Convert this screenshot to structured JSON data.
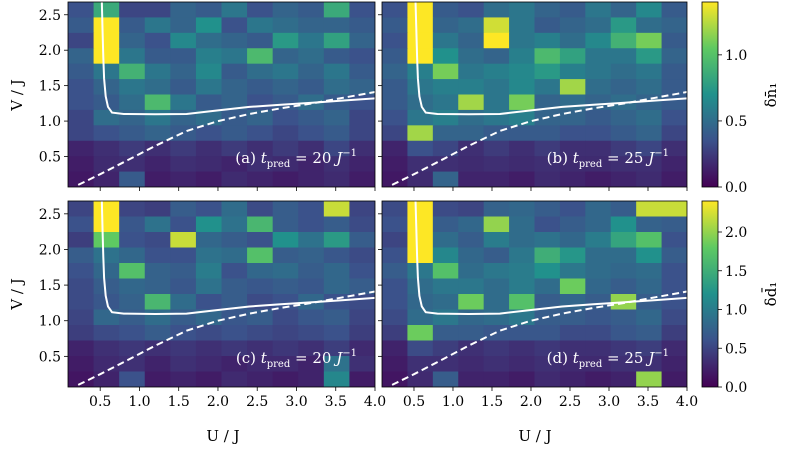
{
  "chart_data": {
    "type": "heatmap",
    "grid": {
      "rows": 12,
      "cols": 12
    },
    "x_range": [
      0.09,
      4.0
    ],
    "y_range": [
      0.07,
      2.68
    ],
    "xticks": [
      0.5,
      1.0,
      1.5,
      2.0,
      2.5,
      3.0,
      3.5,
      4.0
    ],
    "xtick_labels": [
      "0.5",
      "1.0",
      "1.5",
      "2.0",
      "2.5",
      "3.0",
      "3.5",
      "4.0"
    ],
    "yticks": [
      0.5,
      1.0,
      1.5,
      2.0,
      2.5
    ],
    "ytick_labels": [
      "0.5",
      "1.0",
      "1.5",
      "2.0",
      "2.5"
    ],
    "xlabel": "U / J",
    "ylabel": "V / J",
    "colormap": [
      "#440154",
      "#3b528b",
      "#21918c",
      "#5ec962",
      "#fde725"
    ],
    "solid_curve": [
      [
        0.52,
        2.7
      ],
      [
        0.53,
        2.3
      ],
      [
        0.54,
        1.9
      ],
      [
        0.55,
        1.6
      ],
      [
        0.57,
        1.35
      ],
      [
        0.6,
        1.2
      ],
      [
        0.65,
        1.12
      ],
      [
        0.8,
        1.1
      ],
      [
        1.2,
        1.095
      ],
      [
        1.6,
        1.1
      ],
      [
        2.0,
        1.15
      ],
      [
        2.4,
        1.2
      ],
      [
        2.8,
        1.23
      ],
      [
        3.2,
        1.26
      ],
      [
        3.6,
        1.29
      ],
      [
        4.0,
        1.32
      ]
    ],
    "dashed_curve": [
      [
        0.22,
        0.1
      ],
      [
        0.5,
        0.25
      ],
      [
        0.8,
        0.42
      ],
      [
        1.2,
        0.65
      ],
      [
        1.6,
        0.86
      ],
      [
        2.0,
        1.0
      ],
      [
        2.4,
        1.1
      ],
      [
        2.8,
        1.18
      ],
      [
        3.2,
        1.25
      ],
      [
        3.6,
        1.33
      ],
      [
        4.0,
        1.41
      ]
    ],
    "colorbars": [
      {
        "label": "δn̄₁",
        "range": [
          0,
          1.4
        ],
        "ticks": [
          0.0,
          0.5,
          1.0
        ],
        "tick_labels": [
          "0.0",
          "0.5",
          "1.0"
        ]
      },
      {
        "label": "δd̄₁",
        "range": [
          0,
          2.4
        ],
        "ticks": [
          0.0,
          0.5,
          1.0,
          1.5,
          2.0
        ],
        "tick_labels": [
          "0.0",
          "0.5",
          "1.0",
          "1.5",
          "2.0"
        ]
      }
    ],
    "panels": [
      {
        "id": "a",
        "label_prefix": "(a) ",
        "t_pred": "20",
        "colorbar": 0,
        "values": [
          [
            0.35,
            0.85,
            0.3,
            0.3,
            0.45,
            0.4,
            0.55,
            0.35,
            0.45,
            0.4,
            0.85,
            0.35
          ],
          [
            0.4,
            1.4,
            0.4,
            0.55,
            0.45,
            0.7,
            0.35,
            0.55,
            0.5,
            0.45,
            0.45,
            0.4
          ],
          [
            0.3,
            1.4,
            0.45,
            0.35,
            0.65,
            0.5,
            0.45,
            0.4,
            0.75,
            0.55,
            0.8,
            0.45
          ],
          [
            0.45,
            1.4,
            0.55,
            0.4,
            0.4,
            0.6,
            0.55,
            0.95,
            0.45,
            0.5,
            0.4,
            0.35
          ],
          [
            0.4,
            0.55,
            0.9,
            0.55,
            0.45,
            0.65,
            0.4,
            0.5,
            0.55,
            0.45,
            0.55,
            0.4
          ],
          [
            0.35,
            0.45,
            0.55,
            0.5,
            0.4,
            0.55,
            0.45,
            0.4,
            0.45,
            0.4,
            0.5,
            0.45
          ],
          [
            0.35,
            0.4,
            0.5,
            0.95,
            0.55,
            0.4,
            0.45,
            0.35,
            0.4,
            0.5,
            0.4,
            0.35
          ],
          [
            0.3,
            0.5,
            0.45,
            0.55,
            0.45,
            0.5,
            0.4,
            0.45,
            0.35,
            0.4,
            0.45,
            0.3
          ],
          [
            0.3,
            0.35,
            0.4,
            0.45,
            0.4,
            0.35,
            0.4,
            0.35,
            0.3,
            0.35,
            0.4,
            0.3
          ],
          [
            0.15,
            0.2,
            0.25,
            0.2,
            0.25,
            0.2,
            0.25,
            0.2,
            0.25,
            0.2,
            0.3,
            0.2
          ],
          [
            0.12,
            0.18,
            0.2,
            0.15,
            0.2,
            0.18,
            0.15,
            0.2,
            0.18,
            0.15,
            0.2,
            0.15
          ],
          [
            0.1,
            0.15,
            0.4,
            0.12,
            0.15,
            0.12,
            0.18,
            0.15,
            0.12,
            0.15,
            0.18,
            0.12
          ]
        ]
      },
      {
        "id": "b",
        "label_prefix": "(b) ",
        "t_pred": "25",
        "colorbar": 0,
        "values": [
          [
            0.35,
            1.4,
            0.4,
            0.35,
            0.5,
            0.55,
            0.45,
            0.4,
            0.55,
            0.45,
            0.65,
            0.4
          ],
          [
            0.4,
            1.4,
            0.45,
            0.5,
            1.3,
            0.55,
            0.4,
            0.45,
            0.5,
            0.75,
            0.5,
            0.45
          ],
          [
            0.35,
            1.4,
            0.55,
            0.45,
            1.4,
            0.55,
            0.6,
            0.5,
            0.65,
            0.9,
            1.1,
            0.4
          ],
          [
            0.4,
            1.4,
            0.7,
            0.5,
            0.45,
            0.6,
            0.95,
            0.8,
            0.55,
            0.55,
            0.75,
            0.45
          ],
          [
            0.45,
            0.6,
            1.1,
            0.55,
            0.6,
            0.65,
            0.75,
            0.6,
            0.55,
            0.5,
            0.55,
            0.4
          ],
          [
            0.4,
            0.55,
            0.6,
            0.6,
            0.55,
            0.65,
            0.55,
            1.2,
            0.5,
            0.45,
            0.5,
            0.4
          ],
          [
            0.4,
            0.5,
            0.55,
            1.2,
            0.55,
            1.1,
            0.45,
            0.5,
            0.45,
            0.5,
            0.45,
            0.4
          ],
          [
            0.35,
            0.55,
            0.6,
            0.5,
            0.55,
            0.6,
            0.45,
            0.45,
            0.4,
            0.45,
            0.5,
            0.35
          ],
          [
            0.3,
            1.2,
            0.45,
            0.45,
            0.4,
            0.4,
            0.4,
            0.35,
            0.35,
            0.4,
            0.45,
            0.3
          ],
          [
            0.15,
            0.35,
            0.3,
            0.2,
            0.25,
            0.2,
            0.25,
            0.2,
            0.2,
            0.25,
            0.3,
            0.2
          ],
          [
            0.12,
            0.2,
            0.2,
            0.18,
            0.2,
            0.18,
            0.2,
            0.18,
            0.18,
            0.2,
            0.2,
            0.15
          ],
          [
            0.1,
            0.18,
            0.45,
            0.15,
            0.15,
            0.12,
            0.18,
            0.15,
            0.12,
            0.15,
            0.18,
            0.12
          ]
        ]
      },
      {
        "id": "c",
        "label_prefix": "(c) ",
        "t_pred": "20",
        "colorbar": 1,
        "values": [
          [
            0.5,
            2.4,
            0.5,
            0.45,
            0.7,
            0.6,
            0.85,
            0.55,
            0.7,
            0.6,
            2.2,
            0.5
          ],
          [
            0.6,
            2.4,
            0.65,
            0.9,
            0.6,
            1.2,
            0.9,
            1.6,
            0.7,
            0.6,
            0.7,
            0.55
          ],
          [
            0.45,
            1.8,
            0.6,
            0.55,
            2.2,
            0.8,
            0.7,
            0.6,
            1.2,
            0.9,
            1.3,
            0.7
          ],
          [
            0.7,
            0.9,
            0.8,
            0.6,
            0.6,
            0.9,
            0.85,
            1.7,
            0.7,
            0.75,
            0.65,
            0.55
          ],
          [
            0.6,
            0.8,
            1.7,
            0.75,
            0.7,
            1.0,
            0.6,
            0.8,
            0.85,
            0.7,
            0.8,
            0.6
          ],
          [
            0.55,
            0.7,
            0.8,
            0.75,
            0.65,
            0.9,
            0.7,
            0.65,
            0.7,
            0.65,
            0.8,
            0.7
          ],
          [
            0.55,
            0.65,
            0.75,
            1.6,
            0.85,
            0.6,
            0.7,
            0.55,
            0.6,
            0.8,
            0.6,
            0.55
          ],
          [
            0.5,
            0.8,
            0.7,
            0.85,
            0.7,
            0.8,
            0.65,
            0.7,
            0.55,
            0.65,
            0.7,
            0.5
          ],
          [
            0.45,
            0.55,
            0.6,
            0.7,
            0.6,
            0.55,
            0.6,
            0.55,
            0.5,
            0.55,
            0.6,
            0.45
          ],
          [
            0.25,
            0.35,
            0.4,
            0.35,
            0.4,
            0.35,
            0.4,
            0.35,
            0.4,
            0.35,
            0.45,
            0.3
          ],
          [
            0.2,
            0.3,
            0.35,
            0.25,
            0.35,
            0.3,
            0.25,
            0.3,
            0.3,
            0.25,
            0.9,
            0.35
          ],
          [
            0.15,
            0.25,
            0.6,
            0.2,
            0.25,
            0.2,
            0.3,
            0.25,
            0.2,
            0.25,
            1.1,
            0.2
          ]
        ]
      },
      {
        "id": "d",
        "label_prefix": "(d) ",
        "t_pred": "25",
        "colorbar": 1,
        "values": [
          [
            0.55,
            2.4,
            0.55,
            0.5,
            0.75,
            0.8,
            0.7,
            0.6,
            0.8,
            0.7,
            2.2,
            2.2
          ],
          [
            0.6,
            2.4,
            0.7,
            0.8,
            2.0,
            0.85,
            0.6,
            0.7,
            0.8,
            1.2,
            0.75,
            0.7
          ],
          [
            0.5,
            2.4,
            0.85,
            0.7,
            1.0,
            0.85,
            0.9,
            0.8,
            1.0,
            1.4,
            1.7,
            0.6
          ],
          [
            0.6,
            2.4,
            1.1,
            0.8,
            0.7,
            0.95,
            1.5,
            1.25,
            0.85,
            0.85,
            1.2,
            0.7
          ],
          [
            0.7,
            0.95,
            1.7,
            0.85,
            0.95,
            1.0,
            1.2,
            0.95,
            0.85,
            0.8,
            0.85,
            0.6
          ],
          [
            0.6,
            0.85,
            0.95,
            0.95,
            0.85,
            1.0,
            0.85,
            1.85,
            0.8,
            0.7,
            0.8,
            0.6
          ],
          [
            0.6,
            0.8,
            0.85,
            1.85,
            0.85,
            1.7,
            0.7,
            0.8,
            0.7,
            2.0,
            0.7,
            0.6
          ],
          [
            0.55,
            0.85,
            0.95,
            0.8,
            0.85,
            0.95,
            0.7,
            0.7,
            0.65,
            0.7,
            0.8,
            0.55
          ],
          [
            0.45,
            1.85,
            0.7,
            0.7,
            0.65,
            0.65,
            0.65,
            0.55,
            0.55,
            0.65,
            0.7,
            0.45
          ],
          [
            0.25,
            0.55,
            0.45,
            0.35,
            0.4,
            0.35,
            0.4,
            0.35,
            0.35,
            0.4,
            0.45,
            0.3
          ],
          [
            0.2,
            0.35,
            0.35,
            0.3,
            0.35,
            0.3,
            0.35,
            0.3,
            0.3,
            0.35,
            0.35,
            0.25
          ],
          [
            0.15,
            0.3,
            0.7,
            0.25,
            0.25,
            0.2,
            0.3,
            0.25,
            0.2,
            0.25,
            2.0,
            0.2
          ]
        ]
      }
    ]
  }
}
